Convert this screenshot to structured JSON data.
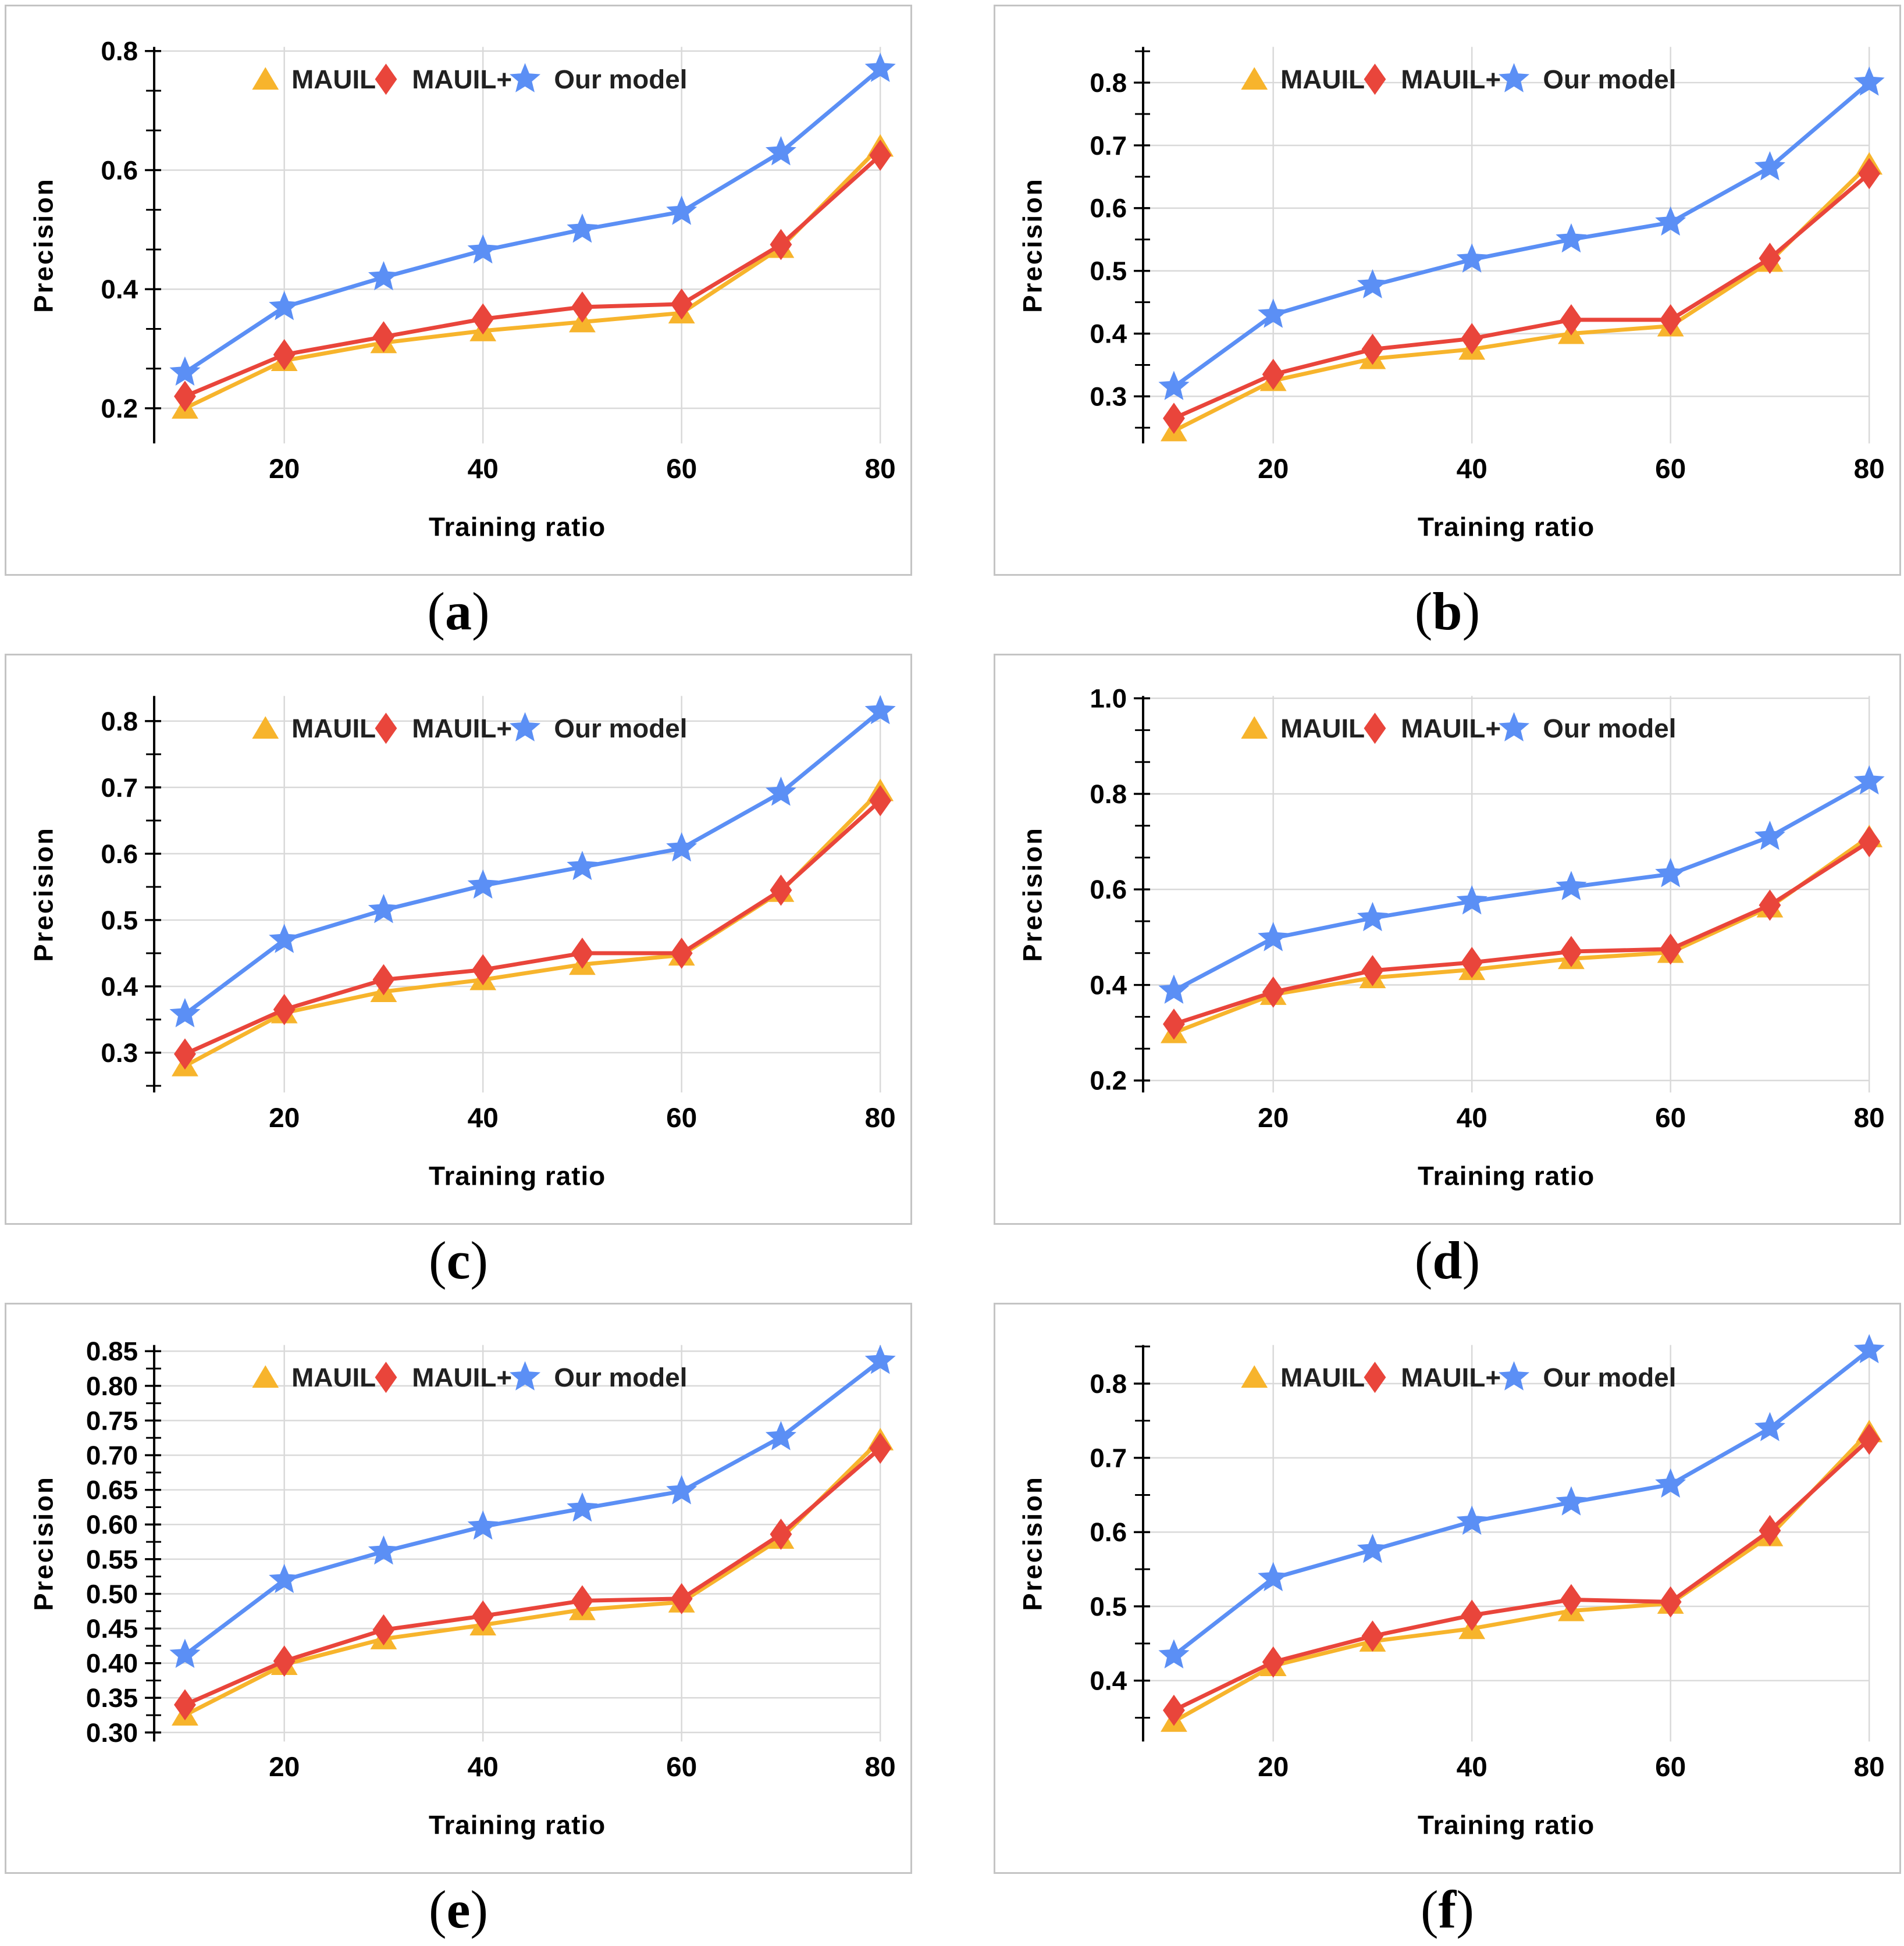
{
  "page": {
    "background": "#ffffff",
    "panel_border_color": "#c4c4c4",
    "grid_color": "#d9d9d9",
    "axis_color": "#000000",
    "text_color": "#000000",
    "legend_text_color": "#212121"
  },
  "legend": {
    "entries": [
      {
        "label": "MAUIL",
        "marker": "triangle",
        "color": "#F7B42C"
      },
      {
        "label": "MAUIL+",
        "marker": "diamond",
        "color": "#E9453B"
      },
      {
        "label": "Our model",
        "marker": "star",
        "color": "#5B8FF5"
      }
    ]
  },
  "chart_data": [
    {
      "type": "line",
      "caption_open": "(",
      "caption_letter": "a",
      "caption_close": ")",
      "xlabel": "Training ratio",
      "ylabel": "Precision",
      "x": [
        10,
        20,
        30,
        40,
        50,
        60,
        70,
        80
      ],
      "xticks": [
        20,
        40,
        60,
        80
      ],
      "xlim": [
        6.9,
        80
      ],
      "ylim": [
        0.141,
        0.807
      ],
      "yticks": [
        0.2,
        0.4,
        0.6,
        0.8
      ],
      "ytick_labels": [
        "0.2",
        "0.4",
        "0.6",
        "0.8"
      ],
      "minor_tick_step": 0.066667,
      "grid": true,
      "legend_position": "top-inside",
      "series": [
        {
          "name": "MAUIL",
          "marker": "triangle",
          "color": "#F7B42C",
          "values": [
            0.2,
            0.28,
            0.31,
            0.33,
            0.345,
            0.36,
            0.47,
            0.64
          ]
        },
        {
          "name": "MAUIL+",
          "marker": "diamond",
          "color": "#E9453B",
          "values": [
            0.22,
            0.29,
            0.32,
            0.35,
            0.37,
            0.375,
            0.475,
            0.625
          ]
        },
        {
          "name": "Our model",
          "marker": "star",
          "color": "#5B8FF5",
          "values": [
            0.26,
            0.37,
            0.42,
            0.465,
            0.5,
            0.53,
            0.63,
            0.77
          ]
        }
      ]
    },
    {
      "type": "line",
      "caption_open": "(",
      "caption_letter": "b",
      "caption_close": ")",
      "xlabel": "Training ratio",
      "ylabel": "Precision",
      "x": [
        10,
        20,
        30,
        40,
        50,
        60,
        70,
        80
      ],
      "xticks": [
        20,
        40,
        60,
        80
      ],
      "xlim": [
        6.9,
        80
      ],
      "ylim": [
        0.225,
        0.857
      ],
      "yticks": [
        0.3,
        0.4,
        0.5,
        0.6,
        0.7,
        0.8
      ],
      "ytick_labels": [
        "0.3",
        "0.4",
        "0.5",
        "0.6",
        "0.7",
        "0.8"
      ],
      "minor_tick_step": 0.05,
      "grid": true,
      "legend_position": "top-inside",
      "series": [
        {
          "name": "MAUIL",
          "marker": "triangle",
          "color": "#F7B42C",
          "values": [
            0.245,
            0.325,
            0.36,
            0.375,
            0.4,
            0.412,
            0.515,
            0.67
          ]
        },
        {
          "name": "MAUIL+",
          "marker": "diamond",
          "color": "#E9453B",
          "values": [
            0.265,
            0.335,
            0.375,
            0.392,
            0.422,
            0.422,
            0.52,
            0.655
          ]
        },
        {
          "name": "Our model",
          "marker": "star",
          "color": "#5B8FF5",
          "values": [
            0.315,
            0.43,
            0.477,
            0.518,
            0.55,
            0.577,
            0.665,
            0.8
          ]
        }
      ]
    },
    {
      "type": "line",
      "caption_open": "(",
      "caption_letter": "c",
      "caption_close": ")",
      "xlabel": "Training ratio",
      "ylabel": "Precision",
      "x": [
        10,
        20,
        30,
        40,
        50,
        60,
        70,
        80
      ],
      "xticks": [
        20,
        40,
        60,
        80
      ],
      "xlim": [
        6.9,
        80
      ],
      "ylim": [
        0.24,
        0.838
      ],
      "yticks": [
        0.3,
        0.4,
        0.5,
        0.6,
        0.7,
        0.8
      ],
      "ytick_labels": [
        "0.3",
        "0.4",
        "0.5",
        "0.6",
        "0.7",
        "0.8"
      ],
      "minor_tick_step": 0.05,
      "grid": true,
      "legend_position": "top-inside",
      "series": [
        {
          "name": "MAUIL",
          "marker": "triangle",
          "color": "#F7B42C",
          "values": [
            0.28,
            0.36,
            0.392,
            0.41,
            0.433,
            0.447,
            0.543,
            0.695
          ]
        },
        {
          "name": "MAUIL+",
          "marker": "diamond",
          "color": "#E9453B",
          "values": [
            0.298,
            0.365,
            0.41,
            0.425,
            0.45,
            0.45,
            0.545,
            0.68
          ]
        },
        {
          "name": "Our model",
          "marker": "star",
          "color": "#5B8FF5",
          "values": [
            0.358,
            0.47,
            0.515,
            0.552,
            0.58,
            0.608,
            0.692,
            0.815
          ]
        }
      ]
    },
    {
      "type": "line",
      "caption_open": "(",
      "caption_letter": "d",
      "caption_close": ")",
      "xlabel": "Training ratio",
      "ylabel": "Precision",
      "x": [
        10,
        20,
        30,
        40,
        50,
        60,
        70,
        80
      ],
      "xticks": [
        20,
        40,
        60,
        80
      ],
      "xlim": [
        6.9,
        80
      ],
      "ylim": [
        0.175,
        1.005
      ],
      "yticks": [
        0.2,
        0.4,
        0.6,
        0.8,
        1.0
      ],
      "ytick_labels": [
        "0.2",
        "0.4",
        "0.6",
        "0.8",
        "1.0"
      ],
      "minor_tick_step": 0.066667,
      "grid": true,
      "legend_position": "top-inside",
      "series": [
        {
          "name": "MAUIL",
          "marker": "triangle",
          "color": "#F7B42C",
          "values": [
            0.3,
            0.38,
            0.415,
            0.432,
            0.455,
            0.468,
            0.563,
            0.71
          ]
        },
        {
          "name": "MAUIL+",
          "marker": "diamond",
          "color": "#E9453B",
          "values": [
            0.318,
            0.385,
            0.43,
            0.447,
            0.47,
            0.475,
            0.567,
            0.7
          ]
        },
        {
          "name": "Our model",
          "marker": "star",
          "color": "#5B8FF5",
          "values": [
            0.388,
            0.498,
            0.54,
            0.575,
            0.605,
            0.632,
            0.71,
            0.826
          ]
        }
      ]
    },
    {
      "type": "line",
      "caption_open": "(",
      "caption_letter": "e",
      "caption_close": ")",
      "xlabel": "Training ratio",
      "ylabel": "Precision",
      "x": [
        10,
        20,
        30,
        40,
        50,
        60,
        70,
        80
      ],
      "xticks": [
        20,
        40,
        60,
        80
      ],
      "xlim": [
        6.9,
        80
      ],
      "ylim": [
        0.287,
        0.859
      ],
      "yticks": [
        0.3,
        0.35,
        0.4,
        0.45,
        0.5,
        0.55,
        0.6,
        0.65,
        0.7,
        0.75,
        0.8,
        0.85
      ],
      "ytick_labels": [
        "0.30",
        "0.35",
        "0.40",
        "0.45",
        "0.50",
        "0.55",
        "0.60",
        "0.65",
        "0.70",
        "0.75",
        "0.80",
        "0.85"
      ],
      "minor_tick_step": 0.025,
      "grid": true,
      "legend_position": "top-inside",
      "series": [
        {
          "name": "MAUIL",
          "marker": "triangle",
          "color": "#F7B42C",
          "values": [
            0.325,
            0.398,
            0.435,
            0.455,
            0.477,
            0.488,
            0.58,
            0.722
          ]
        },
        {
          "name": "MAUIL+",
          "marker": "diamond",
          "color": "#E9453B",
          "values": [
            0.34,
            0.403,
            0.448,
            0.468,
            0.49,
            0.493,
            0.586,
            0.71
          ]
        },
        {
          "name": "Our model",
          "marker": "star",
          "color": "#5B8FF5",
          "values": [
            0.412,
            0.52,
            0.561,
            0.597,
            0.623,
            0.648,
            0.726,
            0.836
          ]
        }
      ]
    },
    {
      "type": "line",
      "caption_open": "(",
      "caption_letter": "f",
      "caption_close": ")",
      "xlabel": "Training ratio",
      "ylabel": "Precision",
      "x": [
        10,
        20,
        30,
        40,
        50,
        60,
        70,
        80
      ],
      "xticks": [
        20,
        40,
        60,
        80
      ],
      "xlim": [
        6.9,
        80
      ],
      "ylim": [
        0.318,
        0.852
      ],
      "yticks": [
        0.4,
        0.5,
        0.6,
        0.7,
        0.8
      ],
      "ytick_labels": [
        "0.4",
        "0.5",
        "0.6",
        "0.7",
        "0.8"
      ],
      "minor_tick_step": 0.05,
      "grid": true,
      "legend_position": "top-inside",
      "series": [
        {
          "name": "MAUIL",
          "marker": "triangle",
          "color": "#F7B42C",
          "values": [
            0.345,
            0.42,
            0.453,
            0.47,
            0.494,
            0.504,
            0.595,
            0.735
          ]
        },
        {
          "name": "MAUIL+",
          "marker": "diamond",
          "color": "#E9453B",
          "values": [
            0.36,
            0.425,
            0.46,
            0.488,
            0.509,
            0.506,
            0.602,
            0.725
          ]
        },
        {
          "name": "Our model",
          "marker": "star",
          "color": "#5B8FF5",
          "values": [
            0.434,
            0.538,
            0.576,
            0.614,
            0.64,
            0.664,
            0.74,
            0.845
          ]
        }
      ]
    }
  ]
}
